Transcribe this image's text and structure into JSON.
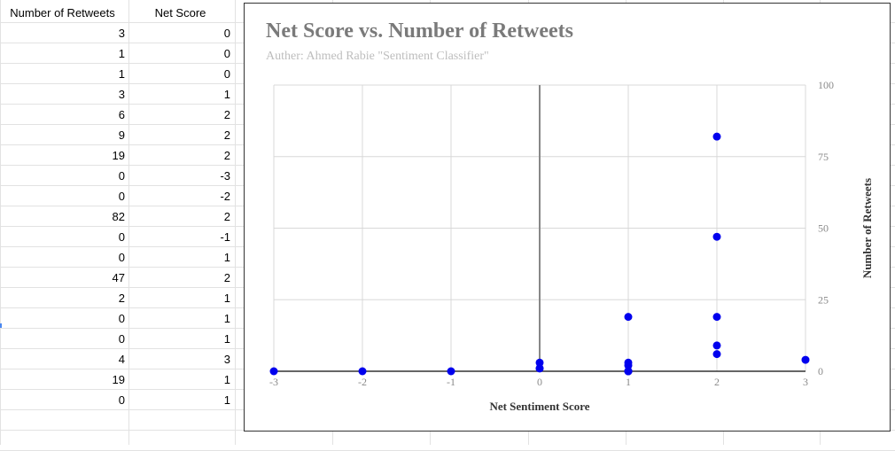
{
  "sheet": {
    "headers": [
      "Number of Retweets",
      "Net Score"
    ],
    "rows": [
      [
        "3",
        "0"
      ],
      [
        "1",
        "0"
      ],
      [
        "1",
        "0"
      ],
      [
        "3",
        "1"
      ],
      [
        "6",
        "2"
      ],
      [
        "9",
        "2"
      ],
      [
        "19",
        "2"
      ],
      [
        "0",
        "-3"
      ],
      [
        "0",
        "-2"
      ],
      [
        "82",
        "2"
      ],
      [
        "0",
        "-1"
      ],
      [
        "0",
        "1"
      ],
      [
        "47",
        "2"
      ],
      [
        "2",
        "1"
      ],
      [
        "0",
        "1"
      ],
      [
        "0",
        "1"
      ],
      [
        "4",
        "3"
      ],
      [
        "19",
        "1"
      ],
      [
        "0",
        "1"
      ]
    ]
  },
  "chart_data": {
    "type": "scatter",
    "title": "Net Score vs. Number of Retweets",
    "subtitle": "Auther: Ahmed Rabie \"Sentiment Classifier\"",
    "xlabel": "Net Sentiment Score",
    "ylabel": "Number of Retweets",
    "xlim": [
      -3,
      3
    ],
    "ylim": [
      0,
      100
    ],
    "xticks": [
      -3,
      -2,
      -1,
      0,
      1,
      2,
      3
    ],
    "yticks": [
      0,
      25,
      50,
      75,
      100
    ],
    "y_axis_side": "right",
    "grid": true,
    "point_color": "#0000ee",
    "points": [
      {
        "x": 0,
        "y": 3
      },
      {
        "x": 0,
        "y": 1
      },
      {
        "x": 0,
        "y": 1
      },
      {
        "x": 1,
        "y": 3
      },
      {
        "x": 2,
        "y": 6
      },
      {
        "x": 2,
        "y": 9
      },
      {
        "x": 2,
        "y": 19
      },
      {
        "x": -3,
        "y": 0
      },
      {
        "x": -2,
        "y": 0
      },
      {
        "x": 2,
        "y": 82
      },
      {
        "x": -1,
        "y": 0
      },
      {
        "x": 1,
        "y": 0
      },
      {
        "x": 2,
        "y": 47
      },
      {
        "x": 1,
        "y": 2
      },
      {
        "x": 1,
        "y": 0
      },
      {
        "x": 1,
        "y": 0
      },
      {
        "x": 3,
        "y": 4
      },
      {
        "x": 1,
        "y": 19
      },
      {
        "x": 1,
        "y": 0
      }
    ]
  }
}
